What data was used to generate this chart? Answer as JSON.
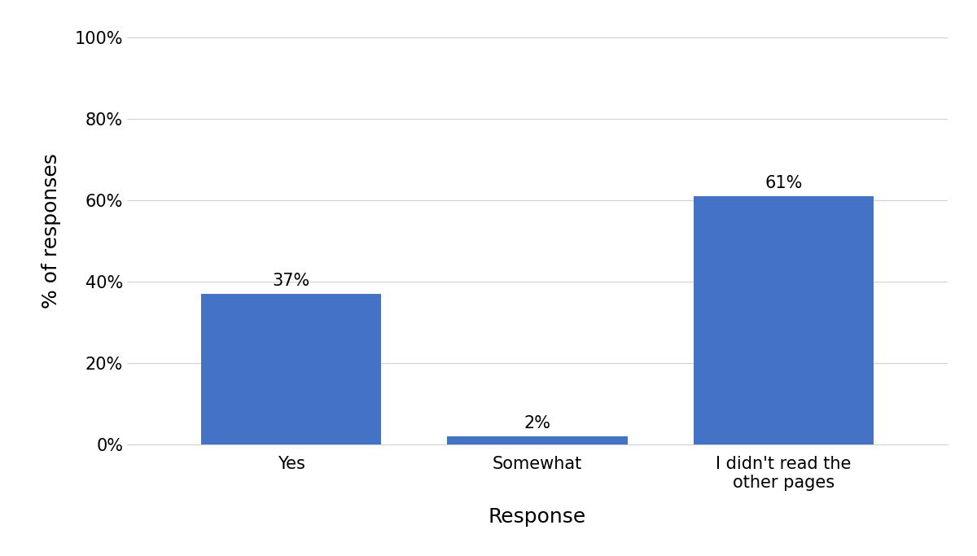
{
  "categories": [
    "Yes",
    "Somewhat",
    "I didn't read the\nother pages"
  ],
  "values": [
    37,
    2,
    61
  ],
  "bar_labels": [
    "37%",
    "2%",
    "61%"
  ],
  "bar_color": "#4472C4",
  "ylabel": "% of responses",
  "xlabel": "Response",
  "ylim": [
    0,
    100
  ],
  "yticks": [
    0,
    20,
    40,
    60,
    80,
    100
  ],
  "ytick_labels": [
    "0%",
    "20%",
    "40%",
    "60%",
    "80%",
    "100%"
  ],
  "background_color": "#ffffff",
  "grid_color": "#d0d0d0",
  "bar_width": 0.22,
  "label_fontsize": 15,
  "tick_fontsize": 15,
  "axis_label_fontsize": 18,
  "x_positions": [
    0.25,
    0.5,
    0.75
  ]
}
